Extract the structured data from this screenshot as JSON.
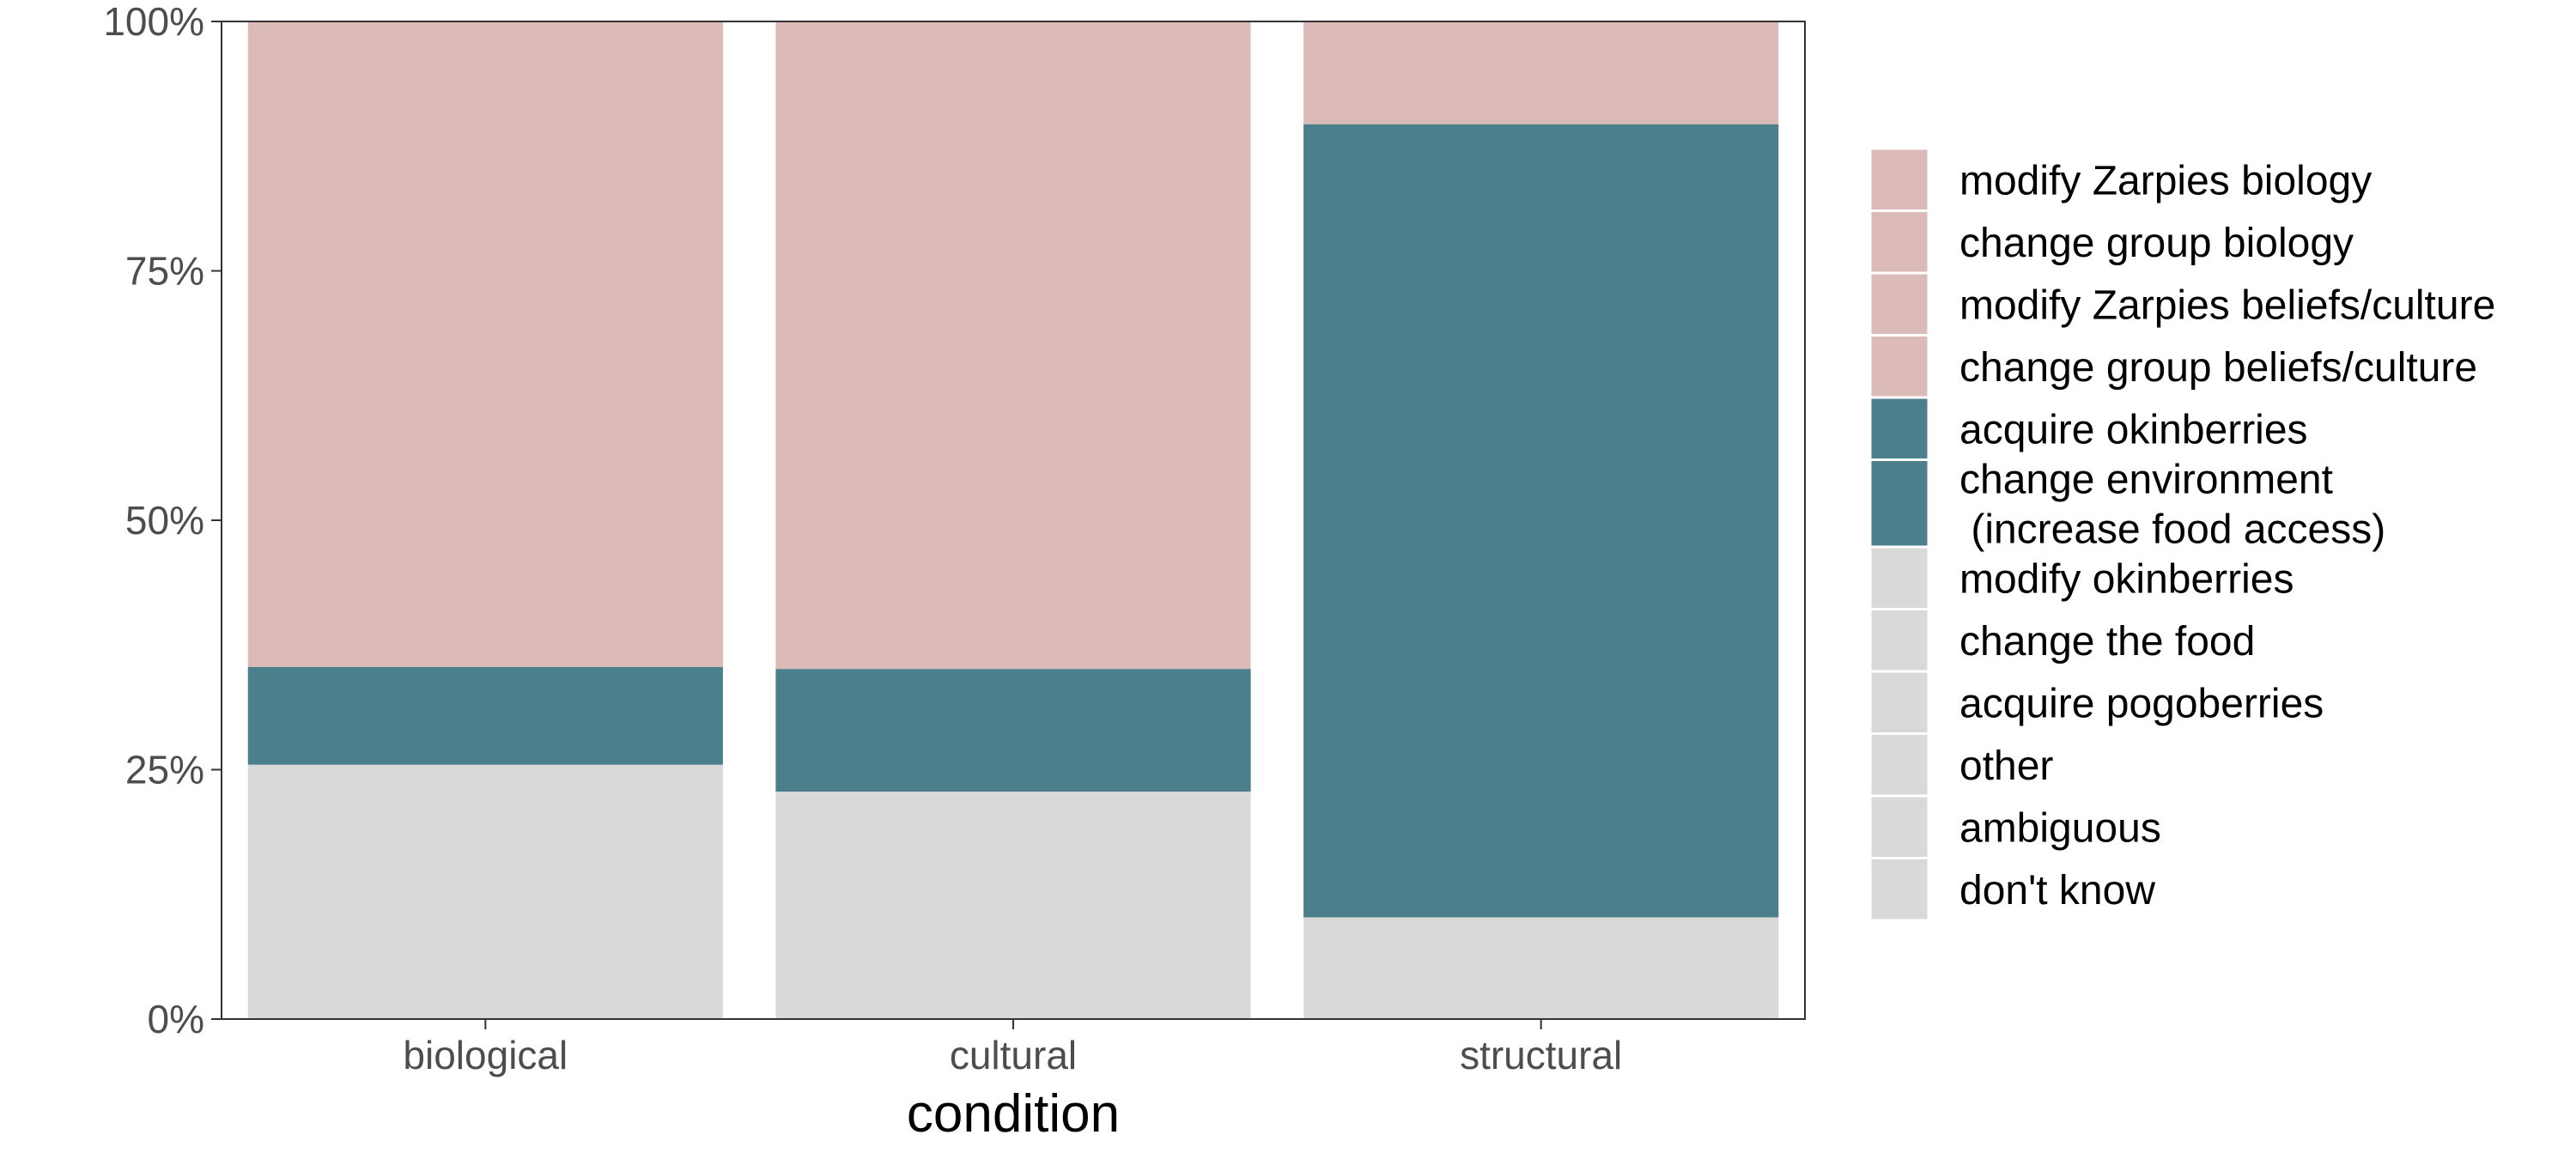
{
  "chart_data": {
    "type": "bar",
    "stacked": true,
    "normalized": true,
    "xlabel": "condition",
    "ylabel": "",
    "ylim": [
      0,
      1
    ],
    "y_ticks": [
      0,
      0.25,
      0.5,
      0.75,
      1
    ],
    "y_tick_labels": [
      "0%",
      "25%",
      "50%",
      "75%",
      "100%"
    ],
    "grid": false,
    "legend_position": "right",
    "categories": [
      "biological",
      "cultural",
      "structural"
    ],
    "groups": [
      {
        "name": "",
        "color": "#d9d9d9",
        "values": [
          0.255,
          0.228,
          0.102
        ]
      },
      {
        "name": "",
        "color": "#4a7f8b",
        "values": [
          0.098,
          0.123,
          0.795
        ]
      },
      {
        "name": "",
        "color": "#dbbab8",
        "values": [
          0.647,
          0.649,
          0.103
        ]
      }
    ],
    "legend": [
      {
        "label": "modify Zarpies biology",
        "color": "#dbbab8"
      },
      {
        "label": "change group biology",
        "color": "#dbbab8"
      },
      {
        "label": "modify Zarpies beliefs/culture",
        "color": "#dbbab8"
      },
      {
        "label": "change group beliefs/culture",
        "color": "#dbbab8"
      },
      {
        "label": "acquire okinberries",
        "color": "#4a7f8b"
      },
      {
        "label": "change environment\n (increase food access)",
        "color": "#4a7f8b"
      },
      {
        "label": "modify okinberries",
        "color": "#d9d9d9"
      },
      {
        "label": "change the food",
        "color": "#d9d9d9"
      },
      {
        "label": "acquire pogoberries",
        "color": "#d9d9d9"
      },
      {
        "label": "other",
        "color": "#d9d9d9"
      },
      {
        "label": "ambiguous",
        "color": "#d9d9d9"
      },
      {
        "label": "don't know",
        "color": "#d9d9d9"
      }
    ]
  }
}
